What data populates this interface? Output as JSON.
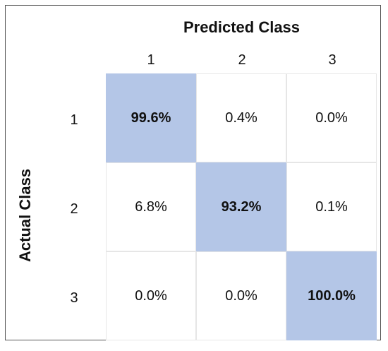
{
  "chart_data": {
    "type": "heatmap",
    "title": "Predicted Class",
    "xlabel": "Predicted Class",
    "ylabel": "Actual Class",
    "x_categories": [
      "1",
      "2",
      "3"
    ],
    "y_categories": [
      "1",
      "2",
      "3"
    ],
    "values_text": [
      [
        "99.6%",
        "0.4%",
        "0.0%"
      ],
      [
        "6.8%",
        "93.2%",
        "0.1%"
      ],
      [
        "0.0%",
        "0.0%",
        "100.0%"
      ]
    ],
    "values": [
      [
        99.6,
        0.4,
        0.0
      ],
      [
        6.8,
        93.2,
        0.1
      ],
      [
        0.0,
        0.0,
        100.0
      ]
    ],
    "highlight_color": "#b4c6e7",
    "highlight": "diagonal"
  }
}
